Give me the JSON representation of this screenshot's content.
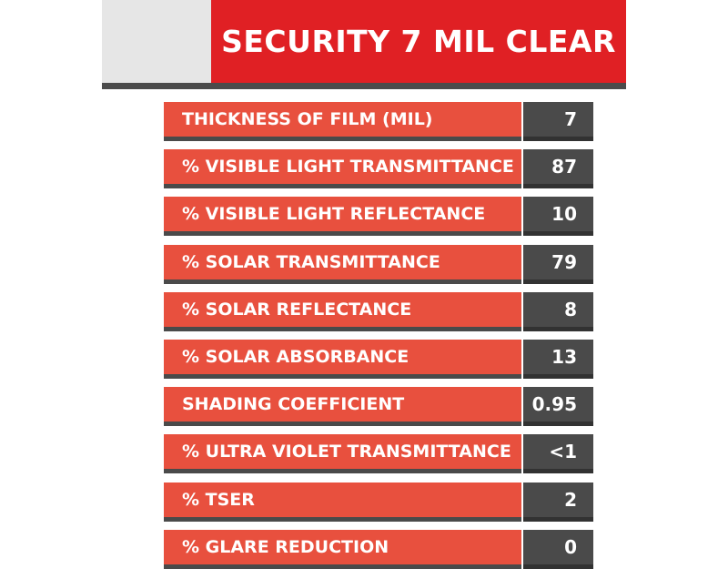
{
  "header": {
    "title": "SECURITY 7 MIL CLEAR"
  },
  "rows": [
    {
      "label": "THICKNESS OF FILM (MIL)",
      "value": "7"
    },
    {
      "label": "% VISIBLE LIGHT TRANSMITTANCE",
      "value": "87"
    },
    {
      "label": "% VISIBLE LIGHT REFLECTANCE",
      "value": "10"
    },
    {
      "label": "% SOLAR TRANSMITTANCE",
      "value": "79"
    },
    {
      "label": "% SOLAR REFLECTANCE",
      "value": "8"
    },
    {
      "label": "% SOLAR ABSORBANCE",
      "value": "13"
    },
    {
      "label": "SHADING COEFFICIENT",
      "value": "0.95"
    },
    {
      "label": "% ULTRA VIOLET TRANSMITTANCE",
      "value": "<1"
    },
    {
      "label": "% TSER",
      "value": "2"
    },
    {
      "label": "% GLARE REDUCTION",
      "value": "0"
    }
  ],
  "colors": {
    "title_red": "#e02024",
    "label_red": "#e8503e",
    "value_gray": "#4a4a4a",
    "header_gray": "#e6e6e6"
  }
}
